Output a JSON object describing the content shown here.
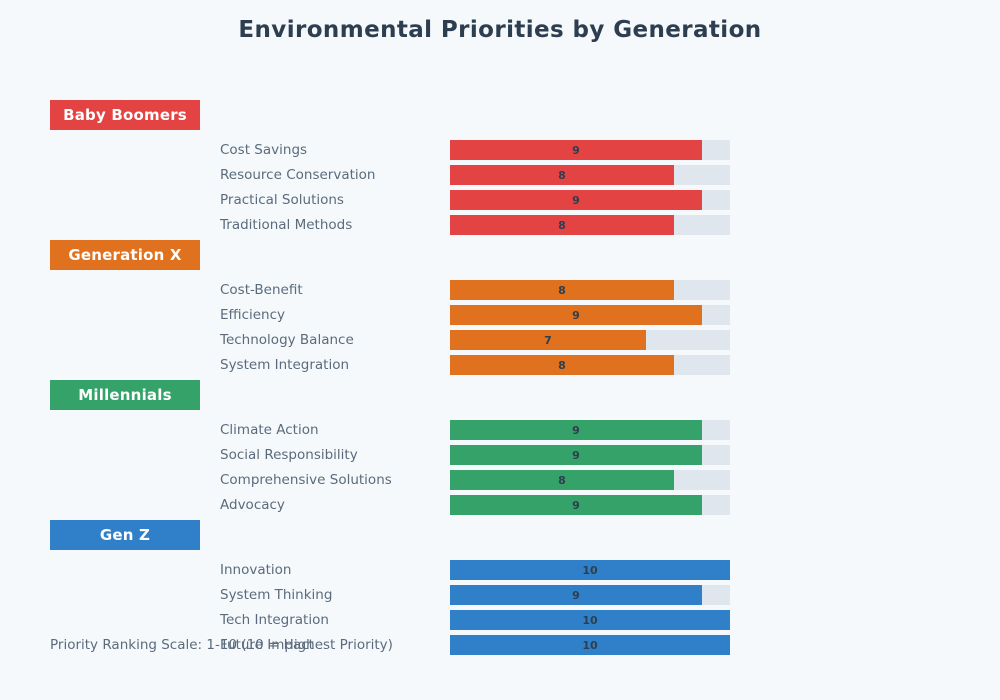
{
  "title": "Environmental Priorities by Generation",
  "footer": "Priority Ranking Scale: 1-10 (10 = Highest Priority)",
  "colors": {
    "background": "#f5f9fc",
    "bar_track": "#e0e6ed",
    "title_text": "#2c3e50",
    "label_text": "#5b6b7c",
    "value_text": "#2f3e4e"
  },
  "chart_data": {
    "type": "bar",
    "orientation": "horizontal",
    "title": "Environmental Priorities by Generation",
    "value_range": [
      0,
      10
    ],
    "scale_note": "Priority Ranking Scale: 1-10 (10 = Highest Priority)",
    "legend_position": "none",
    "grid": false,
    "groups": [
      {
        "name": "Baby Boomers",
        "color": "#e34343",
        "items": [
          {
            "label": "Cost Savings",
            "value": 9
          },
          {
            "label": "Resource Conservation",
            "value": 8
          },
          {
            "label": "Practical Solutions",
            "value": 9
          },
          {
            "label": "Traditional Methods",
            "value": 8
          }
        ]
      },
      {
        "name": "Generation X",
        "color": "#e0711e",
        "items": [
          {
            "label": "Cost-Benefit",
            "value": 8
          },
          {
            "label": "Efficiency",
            "value": 9
          },
          {
            "label": "Technology Balance",
            "value": 7
          },
          {
            "label": "System Integration",
            "value": 8
          }
        ]
      },
      {
        "name": "Millennials",
        "color": "#34a269",
        "items": [
          {
            "label": "Climate Action",
            "value": 9
          },
          {
            "label": "Social Responsibility",
            "value": 9
          },
          {
            "label": "Comprehensive Solutions",
            "value": 8
          },
          {
            "label": "Advocacy",
            "value": 9
          }
        ]
      },
      {
        "name": "Gen Z",
        "color": "#2f80c8",
        "items": [
          {
            "label": "Innovation",
            "value": 10
          },
          {
            "label": "System Thinking",
            "value": 9
          },
          {
            "label": "Tech Integration",
            "value": 10
          },
          {
            "label": "Future Impact",
            "value": 10
          }
        ]
      }
    ]
  }
}
